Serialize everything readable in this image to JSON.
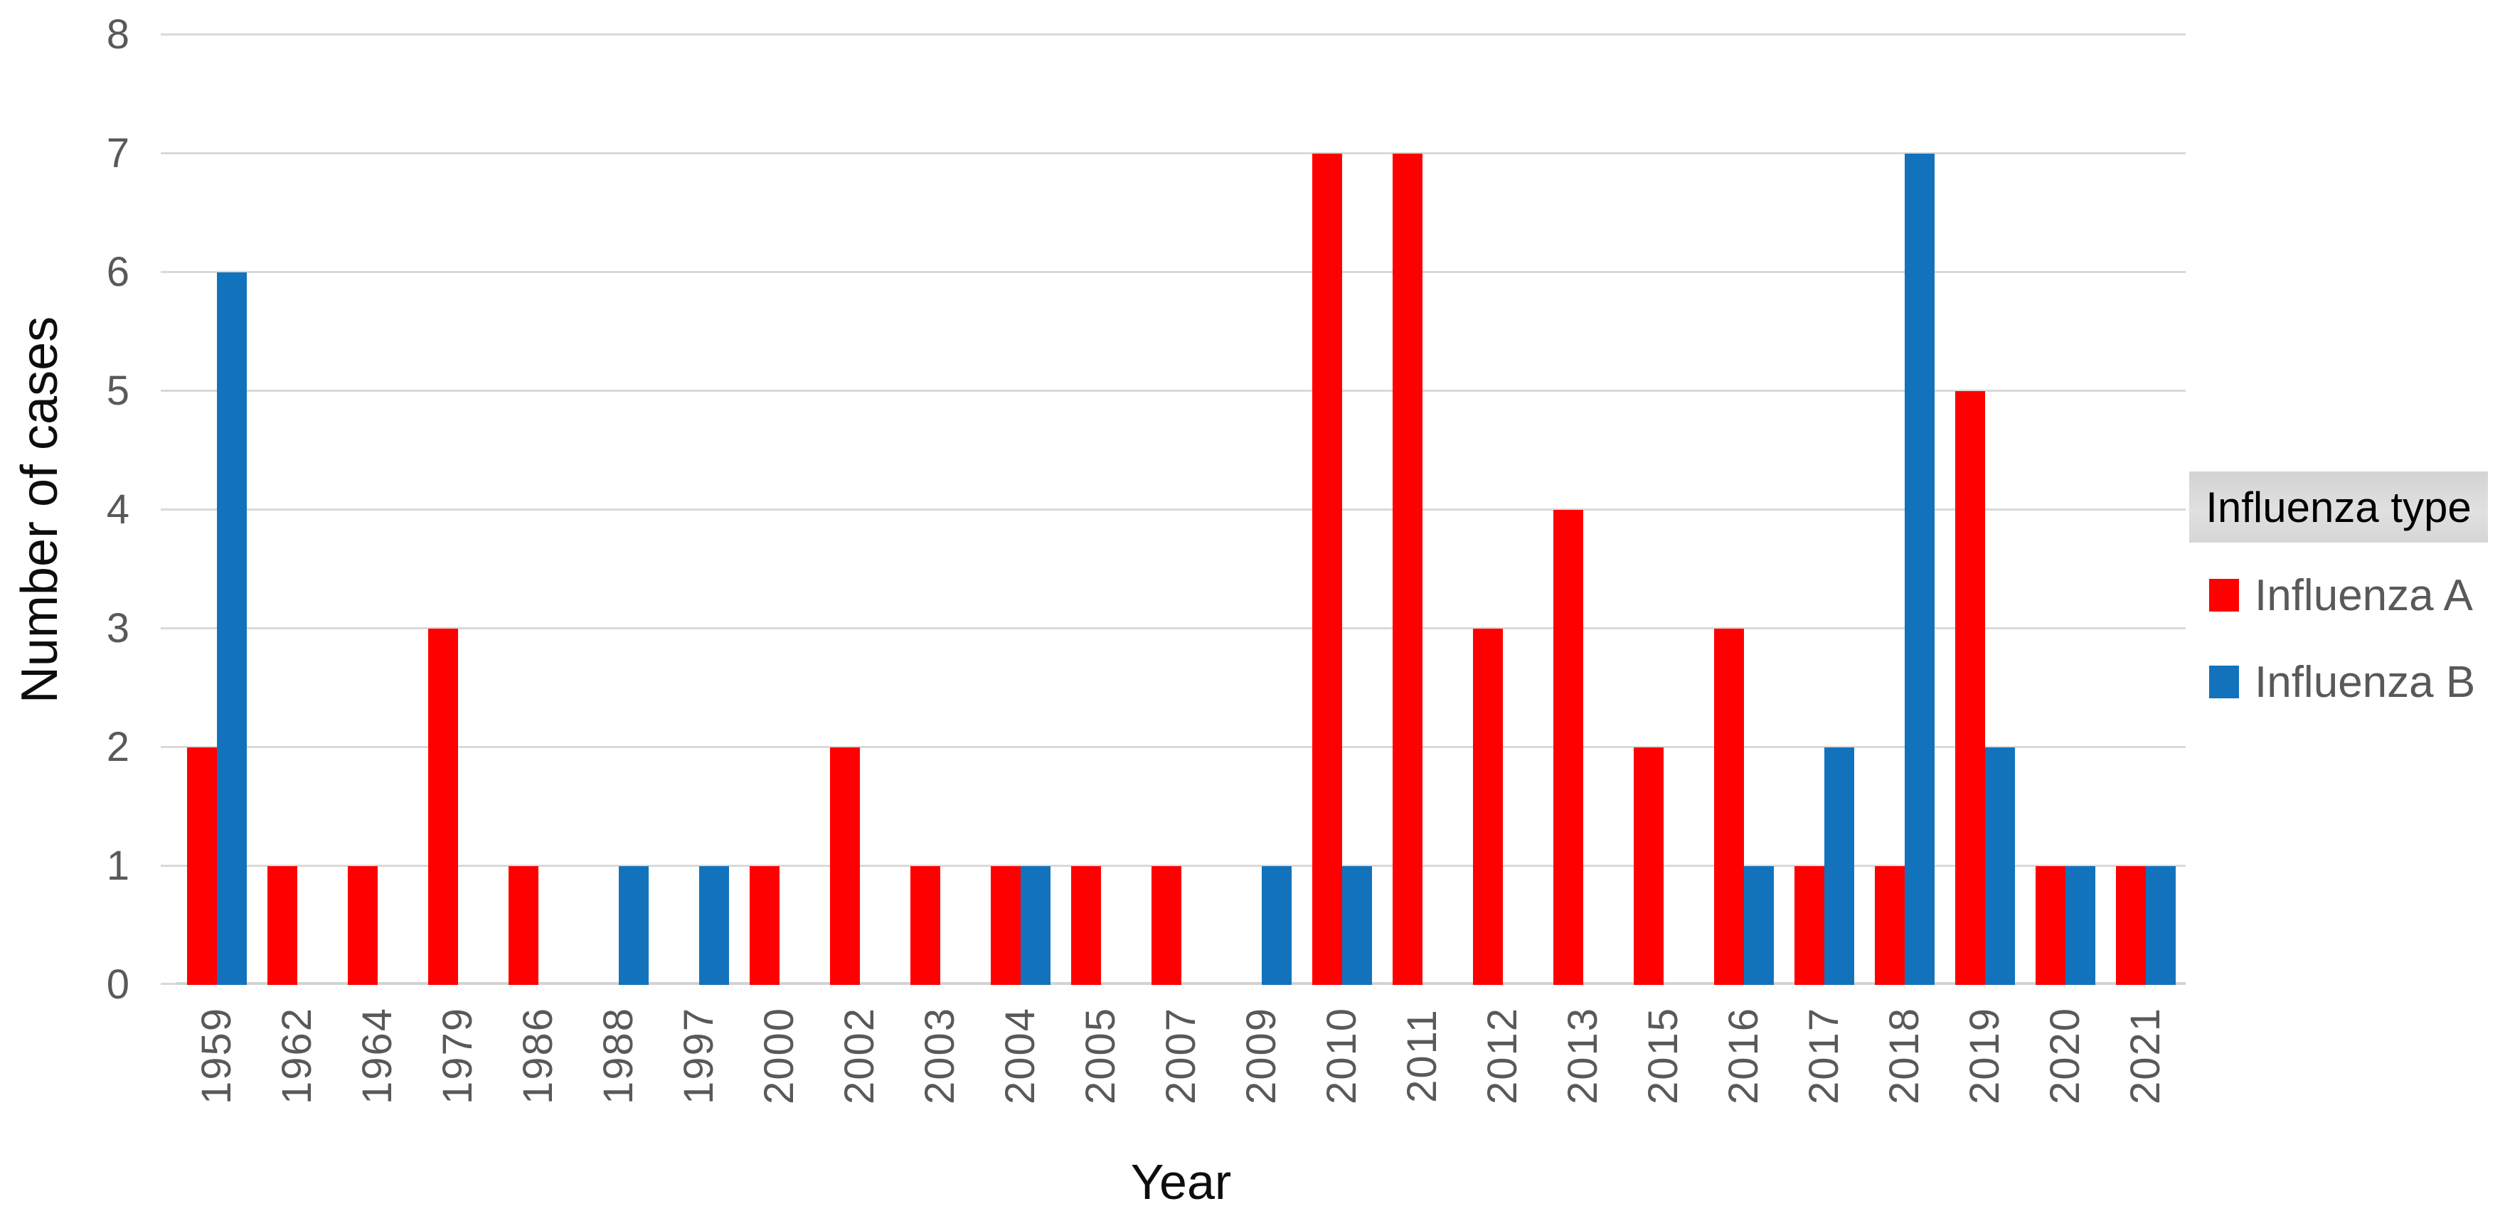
{
  "colors": {
    "background": "#ffffff",
    "gridline": "#d9d9d9",
    "axis_line": "#d2d2d2",
    "tick_text": "#595959",
    "axis_title_text": "#0d0d0d",
    "legend_title_bg": "#d9d9d9",
    "influenza_a": "#ff0000",
    "influenza_b": "#1273bc"
  },
  "legend": {
    "title": "Influenza type",
    "items": [
      {
        "label": "Influenza A",
        "color": "#ff0000"
      },
      {
        "label": "Influenza B",
        "color": "#1273bc"
      }
    ]
  },
  "chart_data": {
    "type": "bar",
    "title": "",
    "xlabel": "Year",
    "ylabel": "Number of cases",
    "ylim": [
      0,
      8
    ],
    "yticks": [
      0,
      1,
      2,
      3,
      4,
      5,
      6,
      7,
      8
    ],
    "grid": true,
    "legend_title": "Influenza type",
    "legend_position": "right",
    "categories": [
      "1959",
      "1962",
      "1964",
      "1979",
      "1986",
      "1988",
      "1997",
      "2000",
      "2002",
      "2003",
      "2004",
      "2005",
      "2007",
      "2009",
      "2010",
      "2011",
      "2012",
      "2013",
      "2015",
      "2016",
      "2017",
      "2018",
      "2019",
      "2020",
      "2021"
    ],
    "series": [
      {
        "name": "Influenza A",
        "color": "#ff0000",
        "values": [
          2,
          1,
          1,
          3,
          1,
          0,
          0,
          1,
          2,
          1,
          1,
          1,
          1,
          0,
          7,
          7,
          3,
          4,
          2,
          3,
          1,
          1,
          5,
          1,
          1
        ]
      },
      {
        "name": "Influenza B",
        "color": "#1273bc",
        "values": [
          6,
          0,
          0,
          0,
          0,
          1,
          1,
          0,
          0,
          0,
          1,
          0,
          0,
          1,
          1,
          0,
          0,
          0,
          0,
          1,
          2,
          7,
          2,
          1,
          1
        ]
      }
    ]
  }
}
